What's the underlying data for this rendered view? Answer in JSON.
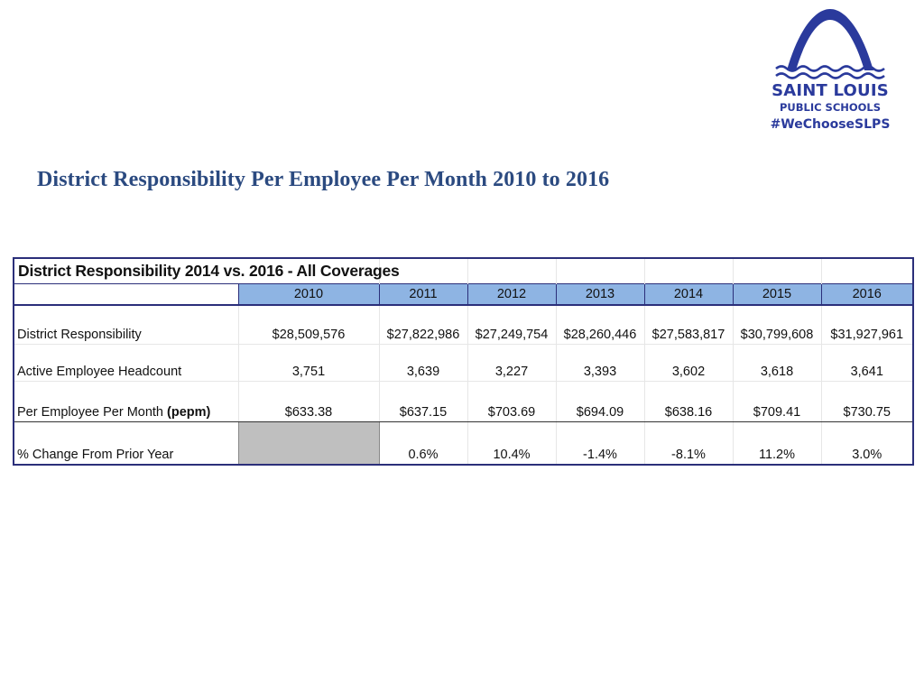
{
  "logo": {
    "line1": "SAINT LOUIS",
    "line2": "PUBLIC SCHOOLS",
    "line3": "#WeChooseSLPS",
    "color": "#2a3a9c",
    "icon": "gateway-arch-icon"
  },
  "title": "District Responsibility Per Employee Per Month 2010 to 2016",
  "table": {
    "caption": "District Responsibility 2014 vs. 2016 - All Coverages",
    "years": [
      "2010",
      "2011",
      "2012",
      "2013",
      "2014",
      "2015",
      "2016"
    ],
    "header_color": "#8eb4e3",
    "rows": [
      {
        "label": "District Responsibility",
        "values": [
          "$28,509,576",
          "$27,822,986",
          "$27,249,754",
          "$28,260,446",
          "$27,583,817",
          "$30,799,608",
          "$31,927,961"
        ]
      },
      {
        "label": "Active Employee Headcount",
        "values": [
          "3,751",
          "3,639",
          "3,227",
          "3,393",
          "3,602",
          "3,618",
          "3,641"
        ]
      },
      {
        "label_main": "Per Employee Per Month ",
        "label_bold": "(pepm)",
        "values": [
          "$633.38",
          "$637.15",
          "$703.69",
          "$694.09",
          "$638.16",
          "$709.41",
          "$730.75"
        ]
      },
      {
        "label": "% Change From Prior Year",
        "values": [
          "",
          "0.6%",
          "10.4%",
          "-1.4%",
          "-8.1%",
          "11.2%",
          "3.0%"
        ]
      }
    ]
  }
}
